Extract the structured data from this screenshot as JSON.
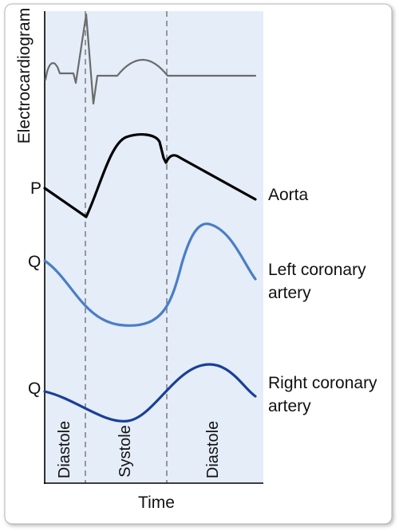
{
  "figure": {
    "ecg_label": "Electrocardiogram",
    "x_axis_label": "Time",
    "pressure_label": "P",
    "flow_label_left": "Q",
    "flow_label_right": "Q",
    "traces": {
      "aorta": "Aorta",
      "left_coronary_line1": "Left coronary",
      "left_coronary_line2": "artery",
      "right_coronary_line1": "Right coronary",
      "right_coronary_line2": "artery"
    },
    "phases": {
      "diastole_early": "Diastole",
      "systole": "Systole",
      "diastole_late": "Diastole"
    }
  },
  "colors": {
    "panel_bg": "#e4edf8",
    "ecg": "#6b6b6b",
    "aorta": "#000000",
    "left_coronary": "#4a7ec5",
    "right_coronary": "#1a3f96",
    "divider": "#6b6b6b",
    "frame_border": "#b5b5b5"
  }
}
